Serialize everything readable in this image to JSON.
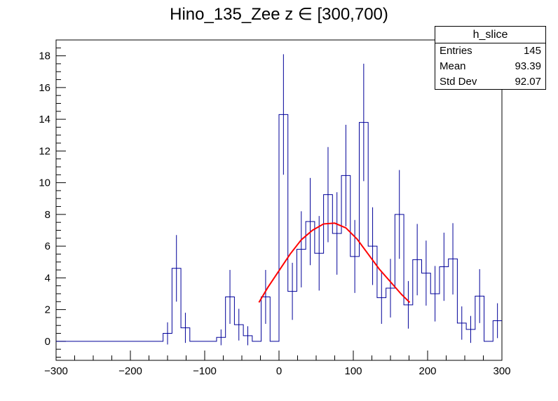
{
  "chart_data": {
    "type": "histogram",
    "title": "Hino_135_Zee z  ∈ [300,700)",
    "xlabel": "",
    "ylabel": "",
    "xlim": [
      -300,
      300
    ],
    "ylim": [
      -1.2,
      19
    ],
    "x_ticks": [
      -300,
      -200,
      -100,
      0,
      100,
      200,
      300
    ],
    "y_ticks": [
      0,
      2,
      4,
      6,
      8,
      10,
      12,
      14,
      16,
      18
    ],
    "grid": false,
    "bin_width": 12,
    "histogram": {
      "color": "#000099",
      "bins": [
        {
          "x0": -300,
          "x1": -156,
          "y": 0,
          "err": 0
        },
        {
          "x0": -156,
          "x1": -144,
          "y": 0.5,
          "err": 0.7
        },
        {
          "x0": -144,
          "x1": -132,
          "y": 4.6,
          "err": 2.1
        },
        {
          "x0": -132,
          "x1": -120,
          "y": 0.85,
          "err": 0.95
        },
        {
          "x0": -120,
          "x1": -84,
          "y": 0,
          "err": 0
        },
        {
          "x0": -84,
          "x1": -72,
          "y": 0.25,
          "err": 0.5
        },
        {
          "x0": -72,
          "x1": -60,
          "y": 2.8,
          "err": 1.7
        },
        {
          "x0": -60,
          "x1": -48,
          "y": 1.05,
          "err": 1.0
        },
        {
          "x0": -48,
          "x1": -36,
          "y": 0.35,
          "err": 0.6
        },
        {
          "x0": -36,
          "x1": -24,
          "y": 0,
          "err": 0
        },
        {
          "x0": -24,
          "x1": -12,
          "y": 2.8,
          "err": 1.7
        },
        {
          "x0": -12,
          "x1": 0,
          "y": 0,
          "err": 0
        },
        {
          "x0": 0,
          "x1": 12,
          "y": 14.3,
          "err": 3.8
        },
        {
          "x0": 12,
          "x1": 24,
          "y": 3.15,
          "err": 1.8
        },
        {
          "x0": 24,
          "x1": 36,
          "y": 5.8,
          "err": 2.4
        },
        {
          "x0": 36,
          "x1": 48,
          "y": 7.55,
          "err": 2.75
        },
        {
          "x0": 48,
          "x1": 60,
          "y": 5.55,
          "err": 2.35
        },
        {
          "x0": 60,
          "x1": 72,
          "y": 9.25,
          "err": 3.0
        },
        {
          "x0": 72,
          "x1": 84,
          "y": 6.8,
          "err": 2.6
        },
        {
          "x0": 84,
          "x1": 96,
          "y": 10.45,
          "err": 3.2
        },
        {
          "x0": 96,
          "x1": 108,
          "y": 5.35,
          "err": 2.3
        },
        {
          "x0": 108,
          "x1": 120,
          "y": 13.8,
          "err": 3.7
        },
        {
          "x0": 120,
          "x1": 132,
          "y": 6.0,
          "err": 2.45
        },
        {
          "x0": 132,
          "x1": 144,
          "y": 2.75,
          "err": 1.65
        },
        {
          "x0": 144,
          "x1": 156,
          "y": 3.35,
          "err": 1.85
        },
        {
          "x0": 156,
          "x1": 168,
          "y": 8.0,
          "err": 2.8
        },
        {
          "x0": 168,
          "x1": 180,
          "y": 2.3,
          "err": 1.5
        },
        {
          "x0": 180,
          "x1": 192,
          "y": 5.15,
          "err": 2.25
        },
        {
          "x0": 192,
          "x1": 204,
          "y": 4.3,
          "err": 2.05
        },
        {
          "x0": 204,
          "x1": 216,
          "y": 3.0,
          "err": 1.75
        },
        {
          "x0": 216,
          "x1": 228,
          "y": 4.7,
          "err": 2.15
        },
        {
          "x0": 228,
          "x1": 240,
          "y": 5.2,
          "err": 2.25
        },
        {
          "x0": 240,
          "x1": 252,
          "y": 1.15,
          "err": 1.05
        },
        {
          "x0": 252,
          "x1": 264,
          "y": 0.75,
          "err": 0.85
        },
        {
          "x0": 264,
          "x1": 276,
          "y": 2.85,
          "err": 1.7
        },
        {
          "x0": 276,
          "x1": 288,
          "y": 0,
          "err": 0
        },
        {
          "x0": 288,
          "x1": 300,
          "y": 1.3,
          "err": 1.1
        }
      ]
    },
    "fit": {
      "color": "#ff0000",
      "x": [
        -27,
        -15,
        0,
        15,
        30,
        45,
        60,
        75,
        90,
        105,
        120,
        135,
        150,
        165,
        176
      ],
      "y": [
        2.45,
        3.4,
        4.45,
        5.5,
        6.4,
        7.0,
        7.4,
        7.45,
        7.15,
        6.45,
        5.5,
        4.55,
        3.75,
        2.95,
        2.45
      ]
    }
  },
  "stats_box": {
    "name": "h_slice",
    "rows": [
      {
        "label": "Entries",
        "value": "145"
      },
      {
        "label": "Mean",
        "value": "93.39"
      },
      {
        "label": "Std Dev",
        "value": "92.07"
      }
    ]
  }
}
